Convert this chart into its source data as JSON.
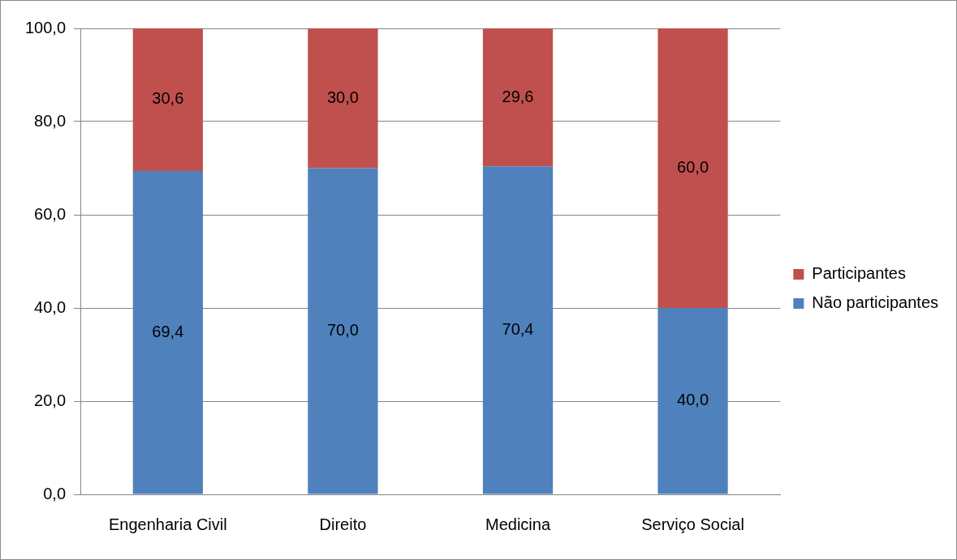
{
  "chart_data": {
    "type": "bar",
    "stacked": true,
    "categories": [
      "Engenharia Civil",
      "Direito",
      "Medicina",
      "Serviço Social"
    ],
    "series": [
      {
        "name": "Não participantes",
        "color": "#4f81bd",
        "values": [
          69.4,
          70.0,
          70.4,
          40.0
        ],
        "value_labels": [
          "69,4",
          "70,0",
          "70,4",
          "40,0"
        ]
      },
      {
        "name": "Participantes",
        "color": "#c0504d",
        "values": [
          30.6,
          30.0,
          29.6,
          60.0
        ],
        "value_labels": [
          "30,6",
          "30,0",
          "29,6",
          "60,0"
        ]
      }
    ],
    "ylim": [
      0,
      100
    ],
    "yticks": [
      {
        "value": 0,
        "label": "0,0"
      },
      {
        "value": 20,
        "label": "20,0"
      },
      {
        "value": 40,
        "label": "40,0"
      },
      {
        "value": 60,
        "label": "60,0"
      },
      {
        "value": 80,
        "label": "80,0"
      },
      {
        "value": 100,
        "label": "100,0"
      }
    ],
    "grid": "y",
    "legend": "right"
  }
}
